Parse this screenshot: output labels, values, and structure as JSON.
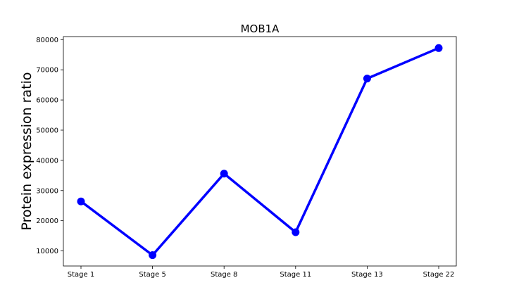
{
  "chart_data": {
    "type": "line",
    "title": "MOB1A",
    "xlabel": "",
    "ylabel": "Protein expression ratio",
    "categories": [
      "Stage 1",
      "Stage 5",
      "Stage 8",
      "Stage 11",
      "Stage 13",
      "Stage 22"
    ],
    "series": [
      {
        "values": [
          26400,
          8600,
          35600,
          16200,
          67100,
          77200
        ]
      }
    ],
    "ylim": [
      5000,
      81000
    ],
    "yticks": [
      10000,
      20000,
      30000,
      40000,
      50000,
      60000,
      70000,
      80000
    ],
    "grid": false,
    "line_color": "#0000ff"
  }
}
